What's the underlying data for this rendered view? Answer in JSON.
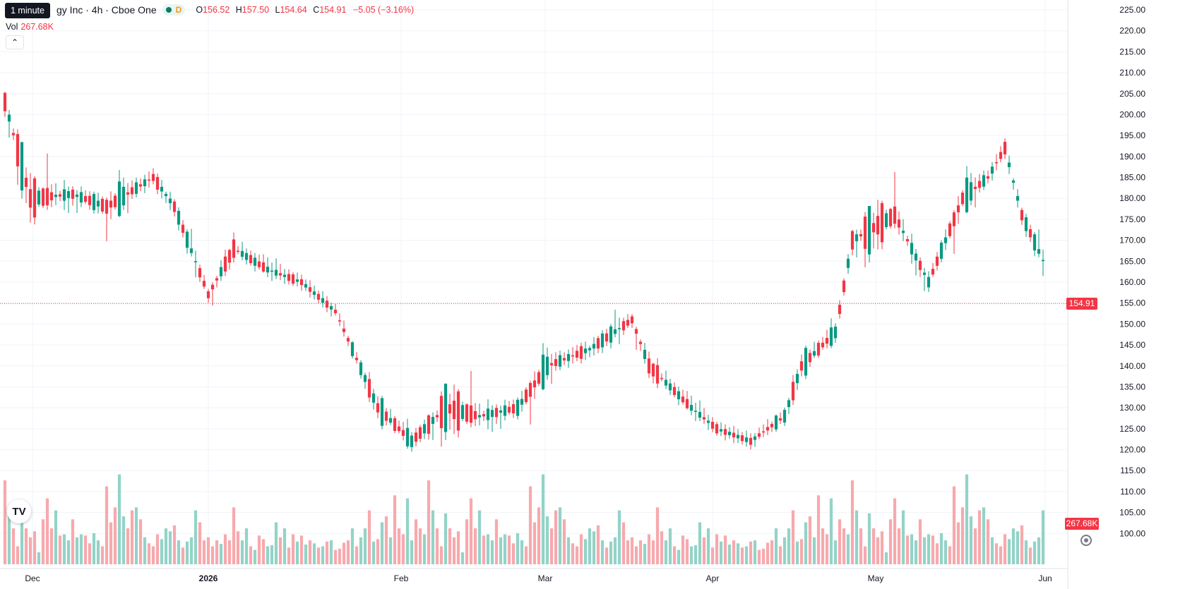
{
  "legend": {
    "symbol": "gy Inc · 4h · Cboe One",
    "flag": "D",
    "o_label": "O",
    "o": "156.52",
    "h_label": "H",
    "h": "157.50",
    "l_label": "L",
    "l": "154.64",
    "c_label": "C",
    "c": "154.91",
    "change": "−5.05 (−3.16%)",
    "vol_label": "Vol",
    "vol": "267.68K"
  },
  "tooltip": "1 minute",
  "collapse_icon": "chevron-up-icon",
  "logo_text": "TV",
  "last_price_tag": "154.91",
  "last_volume_tag": "267.68K",
  "colors": {
    "up": "#089981",
    "down": "#f23645",
    "up_vol": "#93d3c7",
    "down_vol": "#f7a9ad",
    "grid": "#f0f3fa"
  },
  "chart_data": {
    "type": "candlestick",
    "interval": "4h",
    "price_axis": {
      "min": 95,
      "max": 225,
      "ticks": [
        "225.00",
        "220.00",
        "215.00",
        "210.00",
        "205.00",
        "200.00",
        "195.00",
        "190.00",
        "185.00",
        "180.00",
        "175.00",
        "170.00",
        "165.00",
        "160.00",
        "155.00",
        "150.00",
        "145.00",
        "140.00",
        "135.00",
        "130.00",
        "125.00",
        "120.00",
        "115.00",
        "110.00",
        "105.00",
        "100.00"
      ],
      "tick_values": [
        225,
        220,
        215,
        210,
        205,
        200,
        195,
        190,
        185,
        180,
        175,
        170,
        165,
        160,
        155,
        150,
        145,
        140,
        135,
        130,
        125,
        120,
        115,
        110,
        105,
        100
      ]
    },
    "time_axis": {
      "labels": [
        "Dec",
        "2026",
        "Feb",
        "Mar",
        "Apr",
        "May",
        "Jun"
      ],
      "positions": [
        6.5,
        48,
        93.5,
        127.5,
        167,
        205.5,
        245.5
      ],
      "bars_total": 248
    },
    "last_price": 154.91,
    "candles": [
      [
        211.0,
        211.5,
        200.5,
        203.0,
        140
      ],
      [
        203.0,
        208.0,
        196.0,
        206.0,
        90
      ],
      [
        196.0,
        198.0,
        193.0,
        195.0,
        60
      ],
      [
        205.0,
        207.0,
        183.0,
        191.0,
        30
      ],
      [
        189.0,
        210.0,
        185.5,
        210.0,
        85
      ],
      [
        210.0,
        214.5,
        199.0,
        206.0,
        60
      ],
      [
        206.0,
        213.0,
        191.5,
        198.0,
        45
      ],
      [
        198.0,
        199.0,
        178.0,
        181.0,
        55
      ],
      [
        181.0,
        188.5,
        180.0,
        187.0,
        20
      ],
      [
        187.5,
        188.0,
        179.0,
        180.0,
        75
      ],
      [
        180.0,
        195.0,
        170.5,
        172.5,
        110
      ],
      [
        172.5,
        176.0,
        166.0,
        169.0,
        60
      ],
      [
        169.0,
        175.0,
        165.5,
        170.0,
        90
      ],
      [
        170.0,
        171.5,
        167.0,
        169.0,
        48
      ],
      [
        169.0,
        178.0,
        165.0,
        174.0,
        50
      ],
      [
        174.0,
        179.0,
        167.5,
        177.0,
        40
      ],
      [
        177.0,
        178.5,
        170.0,
        173.0,
        75
      ],
      [
        173.0,
        176.0,
        166.0,
        174.0,
        45
      ],
      [
        174.0,
        181.0,
        172.0,
        178.5,
        50
      ],
      [
        178.5,
        181.0,
        175.0,
        176.0,
        48
      ],
      [
        176.0,
        178.0,
        170.0,
        172.0,
        35
      ],
      [
        172.0,
        180.0,
        170.5,
        179.0,
        52
      ],
      [
        179.0,
        185.0,
        176.0,
        181.5,
        40
      ],
      [
        181.5,
        182.5,
        175.0,
        176.0,
        30
      ],
      [
        175.0,
        176.0,
        157.0,
        169.0,
        130
      ],
      [
        169.0,
        173.0,
        161.0,
        166.0,
        70
      ],
      [
        166.0,
        167.0,
        160.0,
        161.0,
        95
      ],
      [
        161.0,
        181.0,
        160.5,
        176.0,
        150
      ],
      [
        176.0,
        188.0,
        174.0,
        184.0,
        80
      ],
      [
        184.0,
        188.0,
        175.0,
        183.0,
        60
      ],
      [
        183.0,
        186.0,
        178.0,
        180.0,
        90
      ],
      [
        180.0,
        187.0,
        178.5,
        185.0,
        95
      ],
      [
        185.0,
        187.5,
        182.0,
        184.0,
        75
      ],
      [
        184.0,
        189.0,
        181.0,
        187.0,
        45
      ],
      [
        187.0,
        190.5,
        183.5,
        186.5,
        35
      ],
      [
        186.5,
        189.0,
        182.0,
        183.5,
        30
      ],
      [
        183.5,
        185.0,
        176.0,
        178.0,
        50
      ],
      [
        178.0,
        183.0,
        175.0,
        180.0,
        42
      ],
      [
        180.0,
        182.0,
        177.0,
        181.0,
        60
      ],
      [
        181.0,
        186.0,
        178.0,
        183.0,
        55
      ],
      [
        183.0,
        184.0,
        176.5,
        178.5,
        65
      ],
      [
        178.5,
        186.0,
        176.0,
        184.5,
        40
      ],
      [
        184.5,
        186.5,
        179.0,
        181.0,
        28
      ],
      [
        181.0,
        189.0,
        178.5,
        188.0,
        38
      ],
      [
        188.0,
        198.5,
        186.5,
        190.0,
        45
      ],
      [
        190.0,
        195.0,
        183.5,
        190.5,
        90
      ],
      [
        190.5,
        192.0,
        184.5,
        186.5,
        70
      ],
      [
        186.5,
        189.0,
        183.0,
        184.0,
        40
      ],
      [
        184.0,
        185.0,
        179.0,
        181.0,
        45
      ],
      [
        181.0,
        182.0,
        172.0,
        179.0,
        30
      ],
      [
        179.0,
        180.0,
        175.0,
        178.0,
        40
      ],
      [
        178.0,
        185.0,
        176.0,
        182.0,
        34
      ],
      [
        182.0,
        185.0,
        173.5,
        175.5,
        50
      ],
      [
        175.5,
        176.0,
        167.0,
        170.0,
        40
      ],
      [
        170.0,
        173.0,
        160.0,
        162.0,
        95
      ],
      [
        162.0,
        164.0,
        160.5,
        161.5,
        55
      ],
      [
        161.5,
        168.0,
        160.0,
        164.0,
        40
      ],
      [
        164.0,
        169.0,
        162.0,
        167.0,
        60
      ],
      [
        167.0,
        169.0,
        162.5,
        163.5,
        30
      ],
      [
        163.5,
        169.0,
        161.0,
        167.0,
        24
      ],
      [
        167.0,
        170.0,
        163.5,
        164.5,
        48
      ],
      [
        164.5,
        168.0,
        160.0,
        160.5,
        42
      ],
      [
        160.5,
        167.0,
        158.5,
        163.0,
        30
      ],
      [
        163.0,
        167.0,
        159.0,
        163.5,
        32
      ],
      [
        163.5,
        171.0,
        162.0,
        166.0,
        70
      ],
      [
        166.0,
        170.0,
        163.0,
        165.0,
        45
      ],
      [
        165.0,
        168.5,
        162.0,
        166.0,
        60
      ],
      [
        166.0,
        168.0,
        161.5,
        163.0,
        28
      ],
      [
        163.0,
        164.0,
        158.0,
        159.0,
        50
      ],
      [
        159.0,
        163.0,
        157.0,
        160.0,
        38
      ],
      [
        160.0,
        162.0,
        155.0,
        157.5,
        48
      ],
      [
        157.5,
        161.0,
        156.0,
        159.0,
        33
      ],
      [
        159.0,
        162.0,
        154.5,
        157.0,
        40
      ],
      [
        157.0,
        161.0,
        155.0,
        158.5,
        35
      ],
      [
        158.5,
        160.0,
        154.5,
        156.0,
        28
      ],
      [
        156.0,
        161.0,
        154.0,
        158.0,
        30
      ],
      [
        158.0,
        160.0,
        153.0,
        155.0,
        38
      ],
      [
        155.0,
        158.0,
        152.0,
        156.5,
        40
      ],
      [
        156.5,
        159.0,
        154.0,
        155.0,
        24
      ],
      [
        155.0,
        158.0,
        152.5,
        154.5,
        26
      ],
      [
        154.5,
        158.0,
        151.0,
        153.0,
        36
      ],
      [
        153.0,
        154.0,
        149.5,
        151.5,
        40
      ],
      [
        151.5,
        158.0,
        150.5,
        157.5,
        60
      ],
      [
        157.5,
        160.0,
        155.0,
        156.5,
        30
      ],
      [
        156.5,
        163.0,
        155.0,
        162.0,
        45
      ],
      [
        162.0,
        166.0,
        159.0,
        165.0,
        60
      ],
      [
        165.0,
        168.0,
        155.0,
        157.0,
        90
      ],
      [
        157.0,
        163.0,
        154.0,
        161.0,
        38
      ],
      [
        161.0,
        164.0,
        154.5,
        157.0,
        42
      ],
      [
        157.0,
        170.0,
        155.5,
        169.0,
        70
      ],
      [
        169.0,
        170.5,
        163.0,
        165.0,
        80
      ],
      [
        165.0,
        171.0,
        164.0,
        167.0,
        45
      ],
      [
        167.0,
        168.0,
        160.5,
        161.5,
        115
      ],
      [
        161.5,
        164.0,
        158.5,
        159.5,
        60
      ],
      [
        159.5,
        163.0,
        155.0,
        157.0,
        50
      ],
      [
        157.0,
        169.0,
        156.0,
        165.0,
        110
      ],
      [
        165.0,
        171.5,
        163.0,
        170.0,
        40
      ],
      [
        170.0,
        172.0,
        164.0,
        166.0,
        75
      ],
      [
        166.0,
        167.0,
        159.5,
        161.0,
        60
      ],
      [
        161.0,
        167.0,
        158.5,
        165.0,
        50
      ]
    ],
    "volume_max_units": 150
  }
}
